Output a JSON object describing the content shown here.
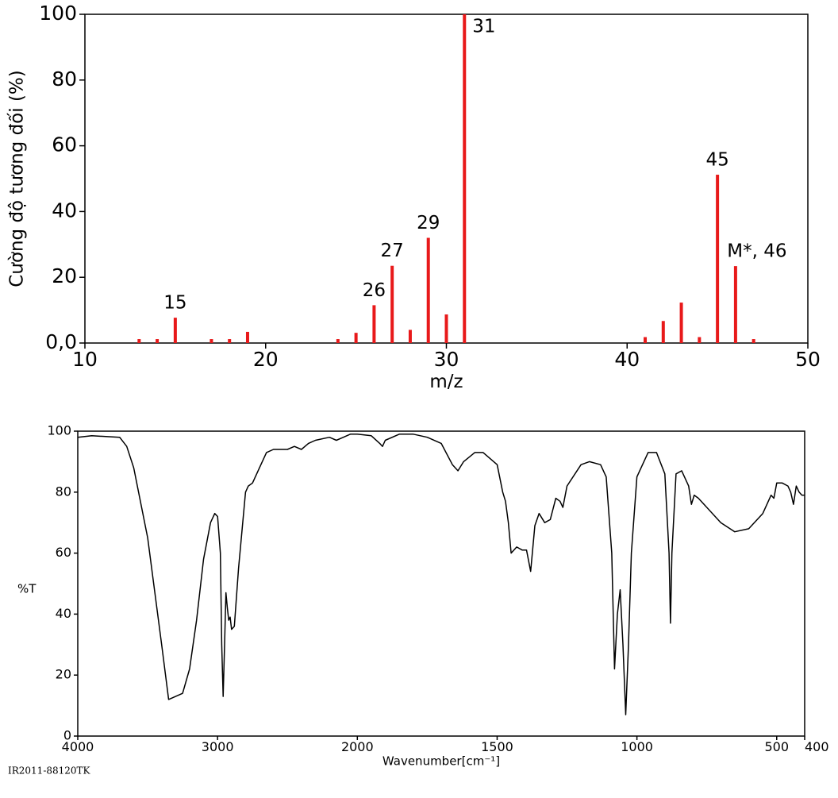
{
  "chart_data": [
    {
      "type": "bar",
      "xlabel": "m/z",
      "ylabel": "Cường độ tương đối (%)",
      "color": "#e8191a",
      "x": [
        13,
        14,
        15,
        17,
        18,
        19,
        24,
        25,
        26,
        27,
        28,
        29,
        30,
        31,
        41,
        42,
        43,
        44,
        45,
        46,
        47
      ],
      "values": [
        1.2,
        1.2,
        7.7,
        1.2,
        1.2,
        3.4,
        1.2,
        3.1,
        11.5,
        23.5,
        4,
        32,
        8.7,
        100,
        1.8,
        6.7,
        12.3,
        1.8,
        51.2,
        23.4,
        1.2
      ],
      "annotations": [
        {
          "text": "15",
          "x": 15
        },
        {
          "text": "26",
          "x": 26
        },
        {
          "text": "27",
          "x": 27
        },
        {
          "text": "29",
          "x": 29
        },
        {
          "text": "31",
          "x": 31
        },
        {
          "text": "45",
          "x": 45
        },
        {
          "text": "M*, 46",
          "x": 46
        }
      ],
      "xlim": [
        10,
        50
      ],
      "xticks": [
        10,
        20,
        30,
        40,
        50
      ],
      "ylim": [
        0,
        100
      ],
      "yticks": [
        {
          "value": 0,
          "label": "0,0"
        },
        20,
        40,
        60,
        80,
        100
      ]
    },
    {
      "type": "line",
      "xlabel": "Wavenumber[cm⁻¹]",
      "ylabel": "%T",
      "footnote": "IR2011-88120TK",
      "color": "#000000",
      "x_scale_change": {
        "at": 2000,
        "factor": 2
      },
      "x": [
        4000,
        3900,
        3700,
        3650,
        3600,
        3500,
        3400,
        3350,
        3250,
        3200,
        3150,
        3100,
        3050,
        3020,
        3000,
        2980,
        2970,
        2960,
        2950,
        2940,
        2930,
        2920,
        2910,
        2900,
        2880,
        2850,
        2800,
        2780,
        2750,
        2700,
        2650,
        2600,
        2500,
        2450,
        2400,
        2350,
        2300,
        2200,
        2150,
        2100,
        2050,
        2000,
        1950,
        1920,
        1910,
        1900,
        1850,
        1800,
        1750,
        1700,
        1660,
        1640,
        1620,
        1580,
        1550,
        1500,
        1480,
        1470,
        1460,
        1450,
        1430,
        1410,
        1395,
        1380,
        1365,
        1350,
        1330,
        1310,
        1290,
        1275,
        1265,
        1250,
        1200,
        1170,
        1130,
        1110,
        1090,
        1080,
        1070,
        1060,
        1050,
        1040,
        1030,
        1020,
        1000,
        960,
        930,
        900,
        885,
        880,
        875,
        860,
        840,
        815,
        805,
        795,
        780,
        700,
        650,
        600,
        550,
        520,
        510,
        500,
        480,
        460,
        450,
        440,
        430,
        420,
        410,
        400
      ],
      "values": [
        98,
        98.5,
        98,
        95,
        88,
        65,
        30,
        12,
        14,
        22,
        38,
        58,
        70,
        73,
        72,
        60,
        30,
        13,
        30,
        47,
        42,
        38,
        39,
        35,
        36,
        55,
        80,
        82,
        83,
        88,
        93,
        94,
        94,
        95,
        94,
        96,
        97,
        98,
        97,
        98,
        99,
        99,
        98.5,
        96,
        95,
        97,
        99,
        99,
        98,
        96,
        89,
        87,
        90,
        93,
        93,
        89,
        80,
        77,
        70,
        60,
        62,
        61,
        61,
        54,
        69,
        73,
        70,
        71,
        78,
        77,
        75,
        82,
        89,
        90,
        89,
        85,
        60,
        22,
        40,
        48,
        30,
        7,
        30,
        60,
        85,
        93,
        93,
        86,
        60,
        37,
        60,
        86,
        87,
        82,
        76,
        79,
        78,
        70,
        67,
        68,
        73,
        79,
        78,
        83,
        83,
        82,
        80,
        76,
        82,
        80,
        79,
        79
      ],
      "xlim": [
        4000,
        400
      ],
      "xticks": [
        4000,
        3000,
        2000,
        1500,
        1000,
        500,
        400
      ],
      "ylim": [
        0,
        100
      ],
      "yticks": [
        0,
        20,
        40,
        60,
        80,
        100
      ]
    }
  ]
}
